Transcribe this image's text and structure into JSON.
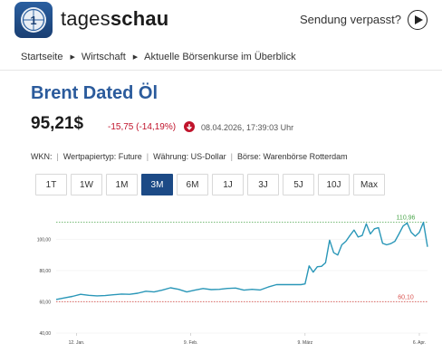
{
  "header": {
    "logo_text_light": "tages",
    "logo_text_bold": "schau",
    "sendung_label": "Sendung verpasst?",
    "logo_icon": "tagesschau-logo-icon",
    "play_icon": "play-icon"
  },
  "breadcrumb": [
    "Startseite",
    "Wirtschaft",
    "Aktuelle Börsenkurse im Überblick"
  ],
  "instrument": {
    "name": "Brent Dated Öl",
    "price": "95,21$",
    "change": "-15,75 (-14,19%)",
    "timestamp": "08.04.2026, 17:39:03 Uhr"
  },
  "meta": {
    "wkn": "WKN:",
    "type": "Wertpapiertyp: Future",
    "currency": "Währung: US-Dollar",
    "exchange": "Börse: Warenbörse Rotterdam"
  },
  "ranges": [
    "1T",
    "1W",
    "1M",
    "3M",
    "6M",
    "1J",
    "3J",
    "5J",
    "10J",
    "Max"
  ],
  "active_range": "3M",
  "colors": {
    "brand_blue": "#2b5b9c",
    "active_button": "#1c4a86",
    "negative": "#c0132b",
    "line": "#2a97b8",
    "high_line": "#4ca64c",
    "low_line": "#d9534f"
  },
  "chart_data": {
    "type": "line",
    "ytick_labels": [
      "40,00",
      "60,00",
      "80,00",
      "100,00"
    ],
    "yticks": [
      40,
      60,
      80,
      100
    ],
    "ylim": [
      40,
      120
    ],
    "xtick_labels": [
      "12. Jan.",
      "9. Feb.",
      "9. März",
      "6. Apr."
    ],
    "xticks": [
      5,
      33,
      61,
      89
    ],
    "xlim": [
      0,
      91
    ],
    "high_label": "110,96",
    "high_value": 110.96,
    "low_label": "60,10",
    "low_value": 60.1,
    "series": [
      {
        "x": [
          0,
          2,
          4,
          6,
          8,
          10,
          12,
          14,
          16,
          18,
          20,
          22,
          24,
          26,
          28,
          30,
          32,
          34,
          36,
          38,
          40,
          42,
          44,
          46,
          48,
          50,
          52,
          54,
          56,
          58,
          60,
          61,
          62,
          63,
          64,
          65,
          66,
          67,
          68,
          69,
          70,
          71,
          72,
          73,
          74,
          75,
          76,
          77,
          78,
          79,
          80,
          81,
          82,
          83,
          84,
          85,
          86,
          87,
          88,
          89,
          90,
          91
        ],
        "values": [
          61.5,
          62.5,
          63.5,
          64.8,
          64.2,
          63.8,
          64,
          64.5,
          65,
          64.8,
          65.5,
          66.8,
          66.3,
          67.5,
          69,
          68,
          66.3,
          67.5,
          68.5,
          67.8,
          68,
          68.6,
          68.8,
          67.5,
          68,
          67.6,
          69.5,
          71,
          71,
          71,
          71,
          71.5,
          83,
          79,
          82.5,
          82.7,
          85,
          99.5,
          91.5,
          90,
          96.5,
          98.8,
          102.5,
          106,
          101.5,
          102.5,
          110,
          103.5,
          106.8,
          107.5,
          97.5,
          96.5,
          97.3,
          98.8,
          103.5,
          108.5,
          110.5,
          104.5,
          102,
          104.5,
          110.96,
          95.21
        ]
      }
    ]
  }
}
